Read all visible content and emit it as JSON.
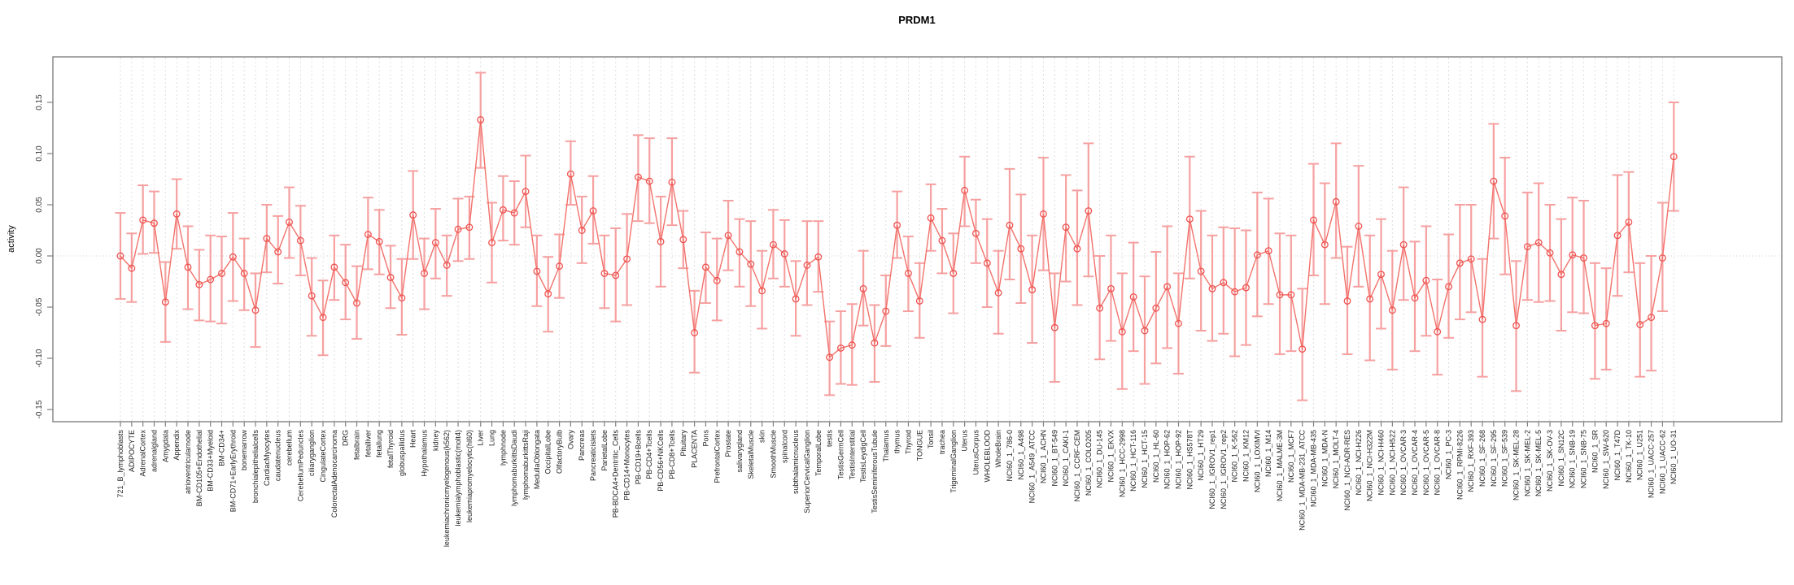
{
  "chart_data": {
    "type": "line",
    "subtype": "errorbar-profile",
    "title": "PRDM1",
    "xlabel": "",
    "ylabel": "activity",
    "ytick_labels": [
      "-0.15",
      "-0.10",
      "-0.05",
      "0.00",
      "0.05",
      "0.10",
      "0.15"
    ],
    "yticks": [
      -0.15,
      -0.1,
      -0.05,
      0.0,
      0.05,
      0.1,
      0.15
    ],
    "ylim": [
      -0.162,
      0.194
    ],
    "grid": "vertical-dashed-per-category, dotted-zero-line",
    "legend_position": "none",
    "marker": "open-circle",
    "colors": {
      "point": "#ee5250",
      "line": "#f2726b",
      "errorbar": "#f6a0a0",
      "grid": "#dedede",
      "zero_line": "#cccccc",
      "axis": "#808080",
      "text": "#000000",
      "background": "#ffffff"
    },
    "categories": [
      "721_B_lymphoblasts",
      "ADIPOCYTE",
      "AdrenalCortex",
      "adrenalgland",
      "Amygdala",
      "Appendix",
      "atrioventricularnode",
      "BM-CD105+Endothelial",
      "BM-CD33+Myeloid",
      "BM-CD34+",
      "BM-CD71+EarlyErythroid",
      "bonemarrow",
      "bronchialepithelialcells",
      "CardiacMyocytes",
      "caudatenucleus",
      "cerebellum",
      "CerebellumPeduncles",
      "ciliaryganglion",
      "CingulateCortex",
      "ColorectalAdenocarcinoma",
      "DRG",
      "fetalbrain",
      "fetalliver",
      "fetallung",
      "fetalThyroid",
      "globuspallidus",
      "Heart",
      "Hypothalamus",
      "kidney",
      "leukemiachronicmyelogenous(k562)",
      "leukemialymphoblastic(molt4)",
      "leukemiapromyelocytic(hl60)",
      "Liver",
      "Lung",
      "lymphnode",
      "lymphomaburkittsDaudi",
      "lymphomaburkittsRaji",
      "MedullaOblongata",
      "OccipitalLobe",
      "OlfactoryBulb",
      "Ovary",
      "Pancreas",
      "Pancreaticislets",
      "ParietalLobe",
      "PB-BDCA4+Dentritic_Cells",
      "PB-CD14+Monocytes",
      "PB-CD19+Bcells",
      "PB-CD4+Tcells",
      "PB-CD56+NKCells",
      "PB-CD8+Tcells",
      "Pituitary",
      "PLACENTA",
      "Pons",
      "PrefrontalCortex",
      "Prostate",
      "salivarygland",
      "SkeletalMuscle",
      "skin",
      "SmoothMuscle",
      "spinalcord",
      "subthalamicnucleus",
      "SuperiorCervicalGanglion",
      "TemporalLobe",
      "testis",
      "TestisGermCell",
      "TestisInterstitial",
      "TestisLeydigCell",
      "TestisSeminiferousTubule",
      "Thalamus",
      "thymus",
      "Thyroid",
      "TONGUE",
      "Tonsil",
      "trachea",
      "TrigeminalGanglion",
      "Uterus",
      "UterusCorpus",
      "WHOLEBLOOD",
      "WholeBrain",
      "NCI60_1_786-0",
      "NCI60_1_A498",
      "NCI60_1_A549_ATCC",
      "NCI60_1_ACHN",
      "NCI60_1_BT-549",
      "NCI60_1_CAKI-1",
      "NCI60_1_CCRF-CEM",
      "NCI60_1_COLO205",
      "NCI60_1_DU-145",
      "NCI60_1_EKVX",
      "NCI60_1_HCC-2998",
      "NCI60_1_HCT-116",
      "NCI60_1_HCT-15",
      "NCI60_1_HL-60",
      "NCI60_1_HOP-62",
      "NCI60_1_HOP-92",
      "NCI60_1_HS578T",
      "NCI60_1_HT29",
      "NCI60_1_IGROV1_rep1",
      "NCI60_1_IGROV1_rep2",
      "NCI60_1_K-562",
      "NCI60_1_KM12",
      "NCI60_1_LOXIMVI",
      "NCI60_1_M14",
      "NCI60_1_MALME-3M",
      "NCI60_1_MCF7",
      "NCI60_1_MDA-MB-231_ATCC",
      "NCI60_1_MDA-MB-435",
      "NCI60_1_MDA-N",
      "NCI60_1_MOLT-4",
      "NCI60_1_NCI-ADR-RES",
      "NCI60_1_NCI-H226",
      "NCI60_1_NCI-H322M",
      "NCI60_1_NCI-H460",
      "NCI60_1_NCI-H522",
      "NCI60_1_OVCAR-3",
      "NCI60_1_OVCAR-4",
      "NCI60_1_OVCAR-5",
      "NCI60_1_OVCAR-8",
      "NCI60_1_PC-3",
      "NCI60_1_RPMI-8226",
      "NCI60_1_RXF-393",
      "NCI60_1_SF-268",
      "NCI60_1_SF-295",
      "NCI60_1_SF-539",
      "NCI60_1_SK-MEL-28",
      "NCI60_1_SK-MEL-2",
      "NCI60_1_SK-MEL-5",
      "NCI60_1_SK-OV-3",
      "NCI60_1_SN12C",
      "NCI60_1_SNB-19",
      "NCI60_1_SNB-75",
      "NCI60_1_SR",
      "NCI60_1_SW-620",
      "NCI60_1_T47D",
      "NCI60_1_TK-10",
      "NCI60_1_U251",
      "NCI60_1_UACC-257",
      "NCI60_1_UACC-62",
      "NCI60_1_UO-31"
    ],
    "series": [
      {
        "name": "activity",
        "values": [
          0.0,
          -0.012,
          0.035,
          0.032,
          -0.045,
          0.041,
          -0.011,
          -0.028,
          -0.023,
          -0.017,
          -0.001,
          -0.017,
          -0.053,
          0.017,
          0.004,
          0.033,
          0.015,
          -0.039,
          -0.06,
          -0.011,
          -0.026,
          -0.046,
          0.021,
          0.014,
          -0.021,
          -0.041,
          0.04,
          -0.017,
          0.013,
          -0.009,
          0.026,
          0.028,
          0.133,
          0.013,
          0.045,
          0.042,
          0.063,
          -0.015,
          -0.037,
          -0.01,
          0.08,
          0.025,
          0.044,
          -0.017,
          -0.019,
          -0.003,
          0.077,
          0.073,
          0.014,
          0.072,
          0.016,
          -0.075,
          -0.011,
          -0.024,
          0.02,
          0.004,
          -0.008,
          -0.034,
          0.011,
          0.002,
          -0.042,
          -0.009,
          -0.001,
          -0.099,
          -0.09,
          -0.087,
          -0.032,
          -0.085,
          -0.054,
          0.03,
          -0.017,
          -0.044,
          0.037,
          0.015,
          -0.017,
          0.064,
          0.022,
          -0.007,
          -0.036,
          0.03,
          0.007,
          -0.033,
          0.041,
          -0.07,
          0.028,
          0.007,
          0.044,
          -0.051,
          -0.032,
          -0.074,
          -0.04,
          -0.073,
          -0.051,
          -0.03,
          -0.066,
          0.036,
          -0.015,
          -0.032,
          -0.026,
          -0.035,
          -0.031,
          0.001,
          0.005,
          -0.038,
          -0.038,
          -0.091,
          0.035,
          0.011,
          0.053,
          -0.044,
          0.029,
          -0.042,
          -0.018,
          -0.053,
          0.011,
          -0.041,
          -0.024,
          -0.074,
          -0.03,
          -0.007,
          -0.003,
          -0.062,
          0.073,
          0.039,
          -0.068,
          0.009,
          0.013,
          0.003,
          -0.018,
          0.001,
          -0.002,
          -0.068,
          -0.066,
          0.02,
          0.033,
          -0.067,
          -0.06,
          -0.002,
          0.097
        ],
        "upper": [
          0.042,
          0.022,
          0.069,
          0.063,
          -0.006,
          0.075,
          0.029,
          0.006,
          0.02,
          0.019,
          0.042,
          0.017,
          -0.017,
          0.05,
          0.039,
          0.067,
          0.049,
          -0.002,
          -0.024,
          0.02,
          0.011,
          -0.01,
          0.057,
          0.045,
          0.01,
          -0.003,
          0.083,
          0.017,
          0.046,
          0.02,
          0.056,
          0.058,
          0.179,
          0.052,
          0.078,
          0.073,
          0.098,
          0.02,
          -0.001,
          0.021,
          0.112,
          0.058,
          0.078,
          0.02,
          0.027,
          0.041,
          0.118,
          0.115,
          0.058,
          0.115,
          0.044,
          -0.034,
          0.023,
          0.017,
          0.054,
          0.036,
          0.034,
          0.005,
          0.045,
          0.035,
          -0.005,
          0.034,
          0.034,
          -0.064,
          -0.054,
          -0.047,
          0.005,
          -0.048,
          -0.019,
          0.063,
          0.019,
          -0.007,
          0.07,
          0.046,
          0.022,
          0.097,
          0.055,
          0.036,
          0.005,
          0.085,
          0.06,
          0.02,
          0.096,
          -0.017,
          0.079,
          0.064,
          0.11,
          0.0,
          0.02,
          -0.017,
          0.013,
          -0.02,
          0.004,
          0.029,
          -0.017,
          0.097,
          0.044,
          0.02,
          0.028,
          0.027,
          0.025,
          0.062,
          0.056,
          0.022,
          0.02,
          -0.032,
          0.09,
          0.071,
          0.11,
          0.009,
          0.088,
          0.02,
          0.036,
          0.005,
          0.067,
          0.014,
          0.029,
          -0.023,
          0.021,
          0.05,
          0.05,
          -0.003,
          0.129,
          0.096,
          -0.005,
          0.062,
          0.071,
          0.05,
          0.036,
          0.057,
          0.054,
          -0.007,
          -0.012,
          0.079,
          0.082,
          -0.007,
          0.0,
          0.052,
          0.15
        ],
        "lower": [
          -0.042,
          -0.045,
          0.002,
          0.003,
          -0.084,
          0.007,
          -0.052,
          -0.063,
          -0.064,
          -0.066,
          -0.044,
          -0.053,
          -0.089,
          -0.016,
          -0.027,
          -0.002,
          -0.019,
          -0.078,
          -0.097,
          -0.043,
          -0.062,
          -0.081,
          -0.013,
          -0.018,
          -0.051,
          -0.077,
          -0.003,
          -0.052,
          -0.022,
          -0.039,
          -0.005,
          -0.003,
          0.086,
          -0.026,
          0.015,
          0.011,
          0.028,
          -0.049,
          -0.074,
          -0.041,
          0.05,
          -0.007,
          0.012,
          -0.051,
          -0.064,
          -0.048,
          0.034,
          0.032,
          -0.03,
          0.03,
          -0.012,
          -0.114,
          -0.046,
          -0.063,
          -0.014,
          -0.03,
          -0.049,
          -0.071,
          -0.022,
          -0.03,
          -0.078,
          -0.048,
          -0.035,
          -0.136,
          -0.125,
          -0.126,
          -0.068,
          -0.123,
          -0.088,
          -0.002,
          -0.054,
          -0.08,
          0.005,
          -0.017,
          -0.056,
          0.029,
          -0.007,
          -0.05,
          -0.076,
          -0.023,
          -0.046,
          -0.085,
          -0.014,
          -0.123,
          -0.025,
          -0.048,
          -0.02,
          -0.101,
          -0.083,
          -0.13,
          -0.093,
          -0.125,
          -0.105,
          -0.09,
          -0.115,
          -0.022,
          -0.073,
          -0.083,
          -0.076,
          -0.098,
          -0.087,
          -0.059,
          -0.047,
          -0.096,
          -0.093,
          -0.141,
          -0.019,
          -0.047,
          -0.002,
          -0.096,
          -0.03,
          -0.102,
          -0.071,
          -0.111,
          -0.043,
          -0.093,
          -0.078,
          -0.116,
          -0.08,
          -0.062,
          -0.055,
          -0.118,
          0.017,
          -0.018,
          -0.132,
          -0.043,
          -0.045,
          -0.044,
          -0.073,
          -0.055,
          -0.056,
          -0.12,
          -0.111,
          -0.039,
          -0.016,
          -0.118,
          -0.112,
          -0.054,
          0.044
        ]
      }
    ]
  }
}
